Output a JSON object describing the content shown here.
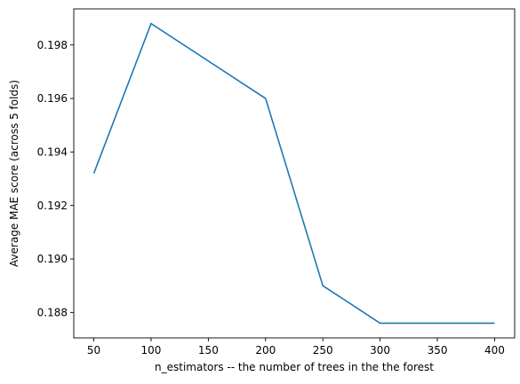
{
  "chart_data": {
    "type": "line",
    "title": "",
    "xlabel": "n_estimators -- the number of trees in the the forest",
    "ylabel": "Average MAE score (across 5 folds)",
    "xlim": [
      32.5,
      417.5
    ],
    "ylim": [
      0.18705,
      0.19935
    ],
    "xticks": [
      50,
      100,
      150,
      200,
      250,
      300,
      350,
      400
    ],
    "yticks": [
      0.188,
      0.19,
      0.192,
      0.194,
      0.196,
      0.198
    ],
    "grid": false,
    "series": [
      {
        "x": [
          50,
          100,
          200,
          250,
          300,
          400
        ],
        "y": [
          0.1932,
          0.1988,
          0.196,
          0.189,
          0.1876,
          0.1876
        ],
        "color": "#1f77b4"
      }
    ]
  }
}
